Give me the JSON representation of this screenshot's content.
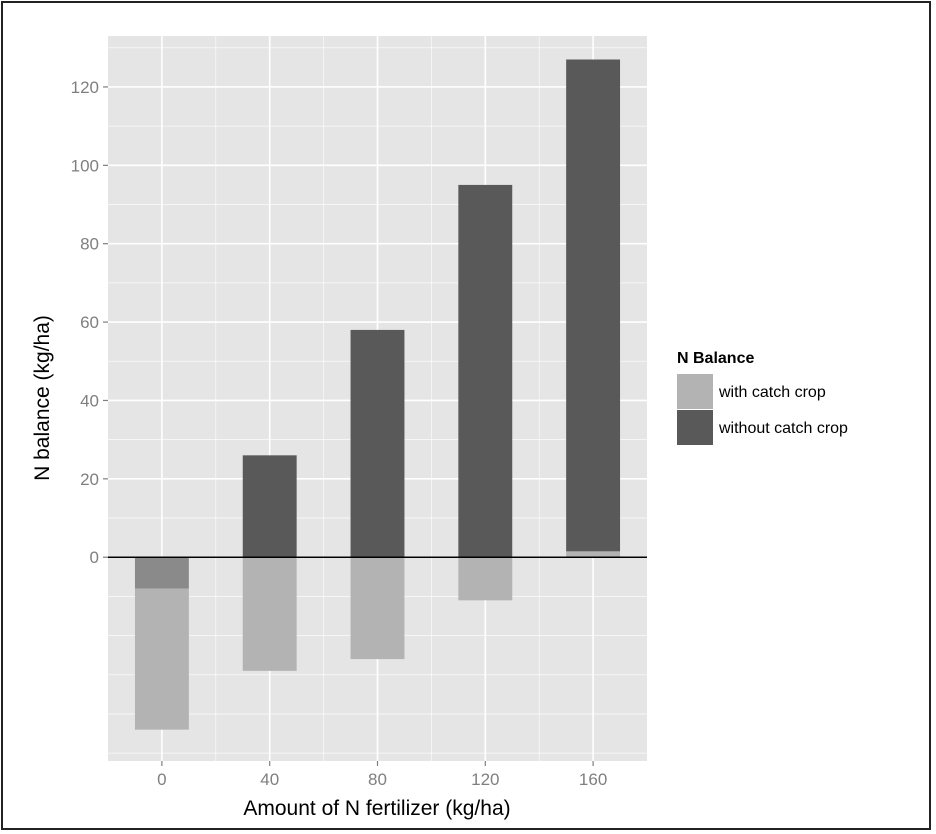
{
  "chart_data": {
    "type": "bar",
    "title": "",
    "xlabel": "Amount of N fertilizer (kg/ha)",
    "ylabel": "N balance (kg/ha)",
    "categories": [
      "0",
      "40",
      "80",
      "120",
      "160"
    ],
    "series": [
      {
        "name": "with catch crop",
        "values": [
          -44,
          -29,
          -26,
          -11,
          1.5
        ],
        "color": "#b3b3b3"
      },
      {
        "name": "without catch crop",
        "values": [
          -8,
          26,
          58,
          95,
          127
        ],
        "color": "#595959"
      }
    ],
    "overlap_color": "#8a8a8a",
    "ylim": [
      -52,
      133
    ],
    "y_ticks": [
      0,
      20,
      40,
      60,
      80,
      100,
      120
    ],
    "x_ticks": [
      "0",
      "40",
      "80",
      "120",
      "160"
    ],
    "reference_line_y": 0,
    "grid": true,
    "legend": {
      "title": "N Balance",
      "position": "right",
      "items": [
        "with catch crop",
        "without catch crop"
      ]
    }
  }
}
